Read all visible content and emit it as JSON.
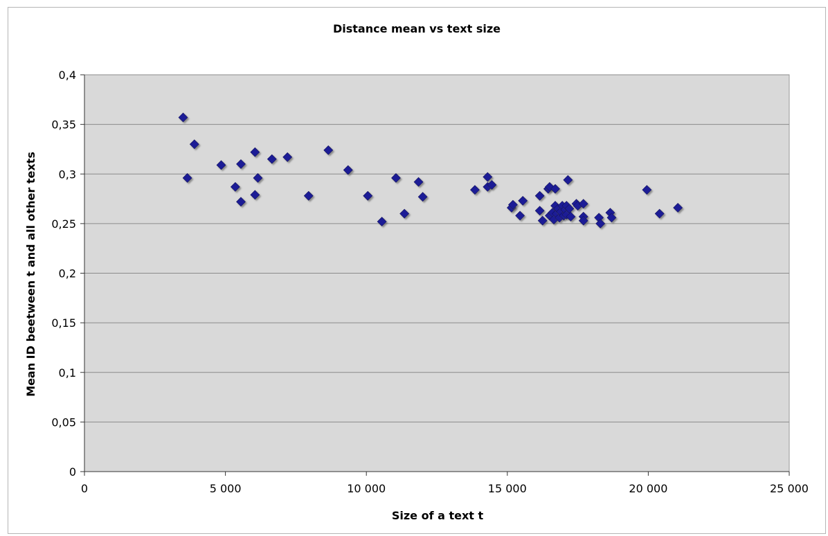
{
  "chart_data": {
    "type": "scatter",
    "title": "Distance mean vs  text size",
    "xlabel": "Size of a text t",
    "ylabel": "Mean ID beetween t and all other texts",
    "xlim": [
      0,
      25000
    ],
    "ylim": [
      0,
      0.4
    ],
    "x_ticks": [
      "0",
      "5 000",
      "10 000",
      "15 000",
      "20 000",
      "25 000"
    ],
    "y_ticks": [
      "0",
      "0,05",
      "0,1",
      "0,15",
      "0,2",
      "0,25",
      "0,3",
      "0,35",
      "0,4"
    ],
    "grid": true,
    "legend": "none",
    "marker": "diamond",
    "colors": {
      "marker": "#1f1f96",
      "plot_bg": "#d9d9d9",
      "grid": "#8a8a8a"
    },
    "points": [
      [
        3500,
        0.357
      ],
      [
        3650,
        0.296
      ],
      [
        3900,
        0.33
      ],
      [
        4850,
        0.309
      ],
      [
        5350,
        0.287
      ],
      [
        5550,
        0.31
      ],
      [
        5550,
        0.272
      ],
      [
        6050,
        0.322
      ],
      [
        6050,
        0.279
      ],
      [
        6150,
        0.296
      ],
      [
        6650,
        0.315
      ],
      [
        7200,
        0.317
      ],
      [
        7950,
        0.278
      ],
      [
        8650,
        0.324
      ],
      [
        9350,
        0.304
      ],
      [
        10050,
        0.278
      ],
      [
        10550,
        0.252
      ],
      [
        11050,
        0.296
      ],
      [
        11350,
        0.26
      ],
      [
        11850,
        0.292
      ],
      [
        12000,
        0.277
      ],
      [
        13850,
        0.284
      ],
      [
        14300,
        0.297
      ],
      [
        14300,
        0.287
      ],
      [
        14450,
        0.289
      ],
      [
        15150,
        0.266
      ],
      [
        15200,
        0.269
      ],
      [
        15450,
        0.258
      ],
      [
        15550,
        0.273
      ],
      [
        16150,
        0.278
      ],
      [
        16150,
        0.263
      ],
      [
        16250,
        0.253
      ],
      [
        16450,
        0.285
      ],
      [
        16500,
        0.287
      ],
      [
        16500,
        0.258
      ],
      [
        16600,
        0.261
      ],
      [
        16650,
        0.254
      ],
      [
        16700,
        0.285
      ],
      [
        16700,
        0.268
      ],
      [
        16750,
        0.26
      ],
      [
        16800,
        0.265
      ],
      [
        16850,
        0.256
      ],
      [
        16900,
        0.262
      ],
      [
        16950,
        0.268
      ],
      [
        17000,
        0.258
      ],
      [
        17050,
        0.264
      ],
      [
        17100,
        0.268
      ],
      [
        17100,
        0.259
      ],
      [
        17150,
        0.294
      ],
      [
        17200,
        0.265
      ],
      [
        17250,
        0.257
      ],
      [
        17450,
        0.27
      ],
      [
        17500,
        0.268
      ],
      [
        17700,
        0.27
      ],
      [
        17700,
        0.257
      ],
      [
        17700,
        0.253
      ],
      [
        18250,
        0.256
      ],
      [
        18300,
        0.25
      ],
      [
        18650,
        0.261
      ],
      [
        18700,
        0.256
      ],
      [
        19950,
        0.284
      ],
      [
        20400,
        0.26
      ],
      [
        21050,
        0.266
      ]
    ]
  }
}
